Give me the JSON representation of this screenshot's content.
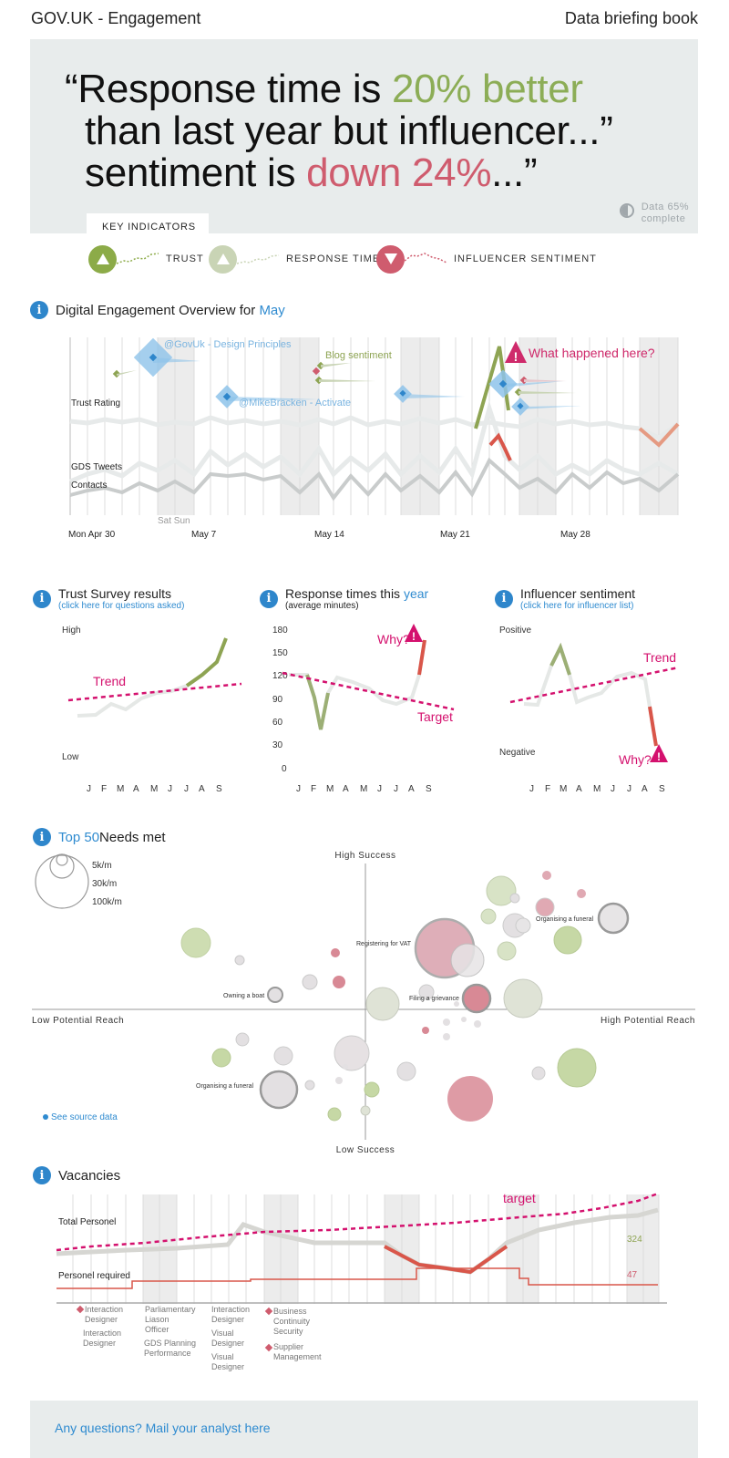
{
  "header": {
    "left_title": "GOV.UK - Engagement",
    "right_title": "Data briefing book"
  },
  "hero": {
    "line1_a": "“Response time is ",
    "line1_b": "20% better",
    "line2": "than last year but influencer...”",
    "line3_a": "sentiment is ",
    "line3_b": "down 24%",
    "line3_c": "...”",
    "complete_1": "Data 65%",
    "complete_2": "complete"
  },
  "key_indicators": {
    "tab_label": "KEY INDICATORS",
    "items": [
      {
        "label": "TRUST",
        "direction": "up",
        "color": "#8cab48"
      },
      {
        "label": "RESPONSE TIME",
        "direction": "up",
        "color": "#c9d4b5"
      },
      {
        "label": "INFLUENCER SENTIMENT",
        "direction": "down",
        "color": "#cf5c6e"
      }
    ]
  },
  "overview": {
    "title": "Digital Engagement Overview for ",
    "month": "May",
    "annotations": {
      "govuk": "@GovUk - Design Principles",
      "blog": "Blog sentiment",
      "mike": "@MikeBracken - Activate",
      "alert": "What happened here?"
    },
    "series_labels": {
      "trust": "Trust Rating",
      "tweets": "GDS Tweets",
      "contacts": "Contacts"
    },
    "weekend_label": "Sat Sun",
    "dates": [
      "Mon Apr 30",
      "May 7",
      "May 14",
      "May 21",
      "May 28"
    ]
  },
  "mini_charts": {
    "trust": {
      "title": "Trust Survey results",
      "link": "(click here for questions asked)",
      "high": "High",
      "low": "Low",
      "trend_label": "Trend",
      "months": [
        "J",
        "F",
        "M",
        "A",
        "M",
        "J",
        "J",
        "A",
        "S"
      ]
    },
    "response": {
      "title": "Response times this ",
      "title_highlight": "year",
      "note": "(average minutes)",
      "yticks": [
        "180",
        "150",
        "120",
        "90",
        "60",
        "30",
        "0"
      ],
      "why": "Why?",
      "target_label": "Target",
      "months": [
        "J",
        "F",
        "M",
        "A",
        "M",
        "J",
        "J",
        "A",
        "S"
      ]
    },
    "influencer": {
      "title": "Influencer sentiment",
      "link": "(click here for influencer list)",
      "positive": "Positive",
      "negative": "Negative",
      "trend_label": "Trend",
      "why": "Why?",
      "months": [
        "J",
        "F",
        "M",
        "A",
        "M",
        "J",
        "J",
        "A",
        "S"
      ]
    }
  },
  "needs": {
    "title_highlight": "Top 50",
    "title_rest": " Needs met",
    "legend": [
      "5k/m",
      "30k/m",
      "100k/m"
    ],
    "axes": {
      "top": "High Success",
      "bottom": "Low Success",
      "left": "Low Potential Reach",
      "right": "High Potential Reach"
    },
    "labels": {
      "vat": "Registering for VAT",
      "funeral_top": "Organising a funeral",
      "boat": "Owning a boat",
      "grievance": "Filing a grievance",
      "funeral_bottom": "Organising a funeral"
    },
    "source_link": "See source data"
  },
  "vacancies": {
    "title": "Vacancies",
    "total_label": "Total Personel",
    "required_label": "Personel required",
    "target_label": "target",
    "total_value": "324",
    "required_value": "47",
    "roles": [
      [
        "Interaction",
        "Designer"
      ],
      [
        "Interaction",
        "Designer"
      ],
      [
        "Parliamentary",
        "Liason",
        "Officer"
      ],
      [
        "GDS Planning",
        "Performance"
      ],
      [
        "Interaction",
        "Designer"
      ],
      [
        "Visual",
        "Designer"
      ],
      [
        "Visual",
        "Designer"
      ],
      [
        "Business",
        "Continuity",
        "Security"
      ],
      [
        "Supplier",
        "Management"
      ]
    ]
  },
  "footer": {
    "text": "Any questions? Mail your analyst here"
  }
}
